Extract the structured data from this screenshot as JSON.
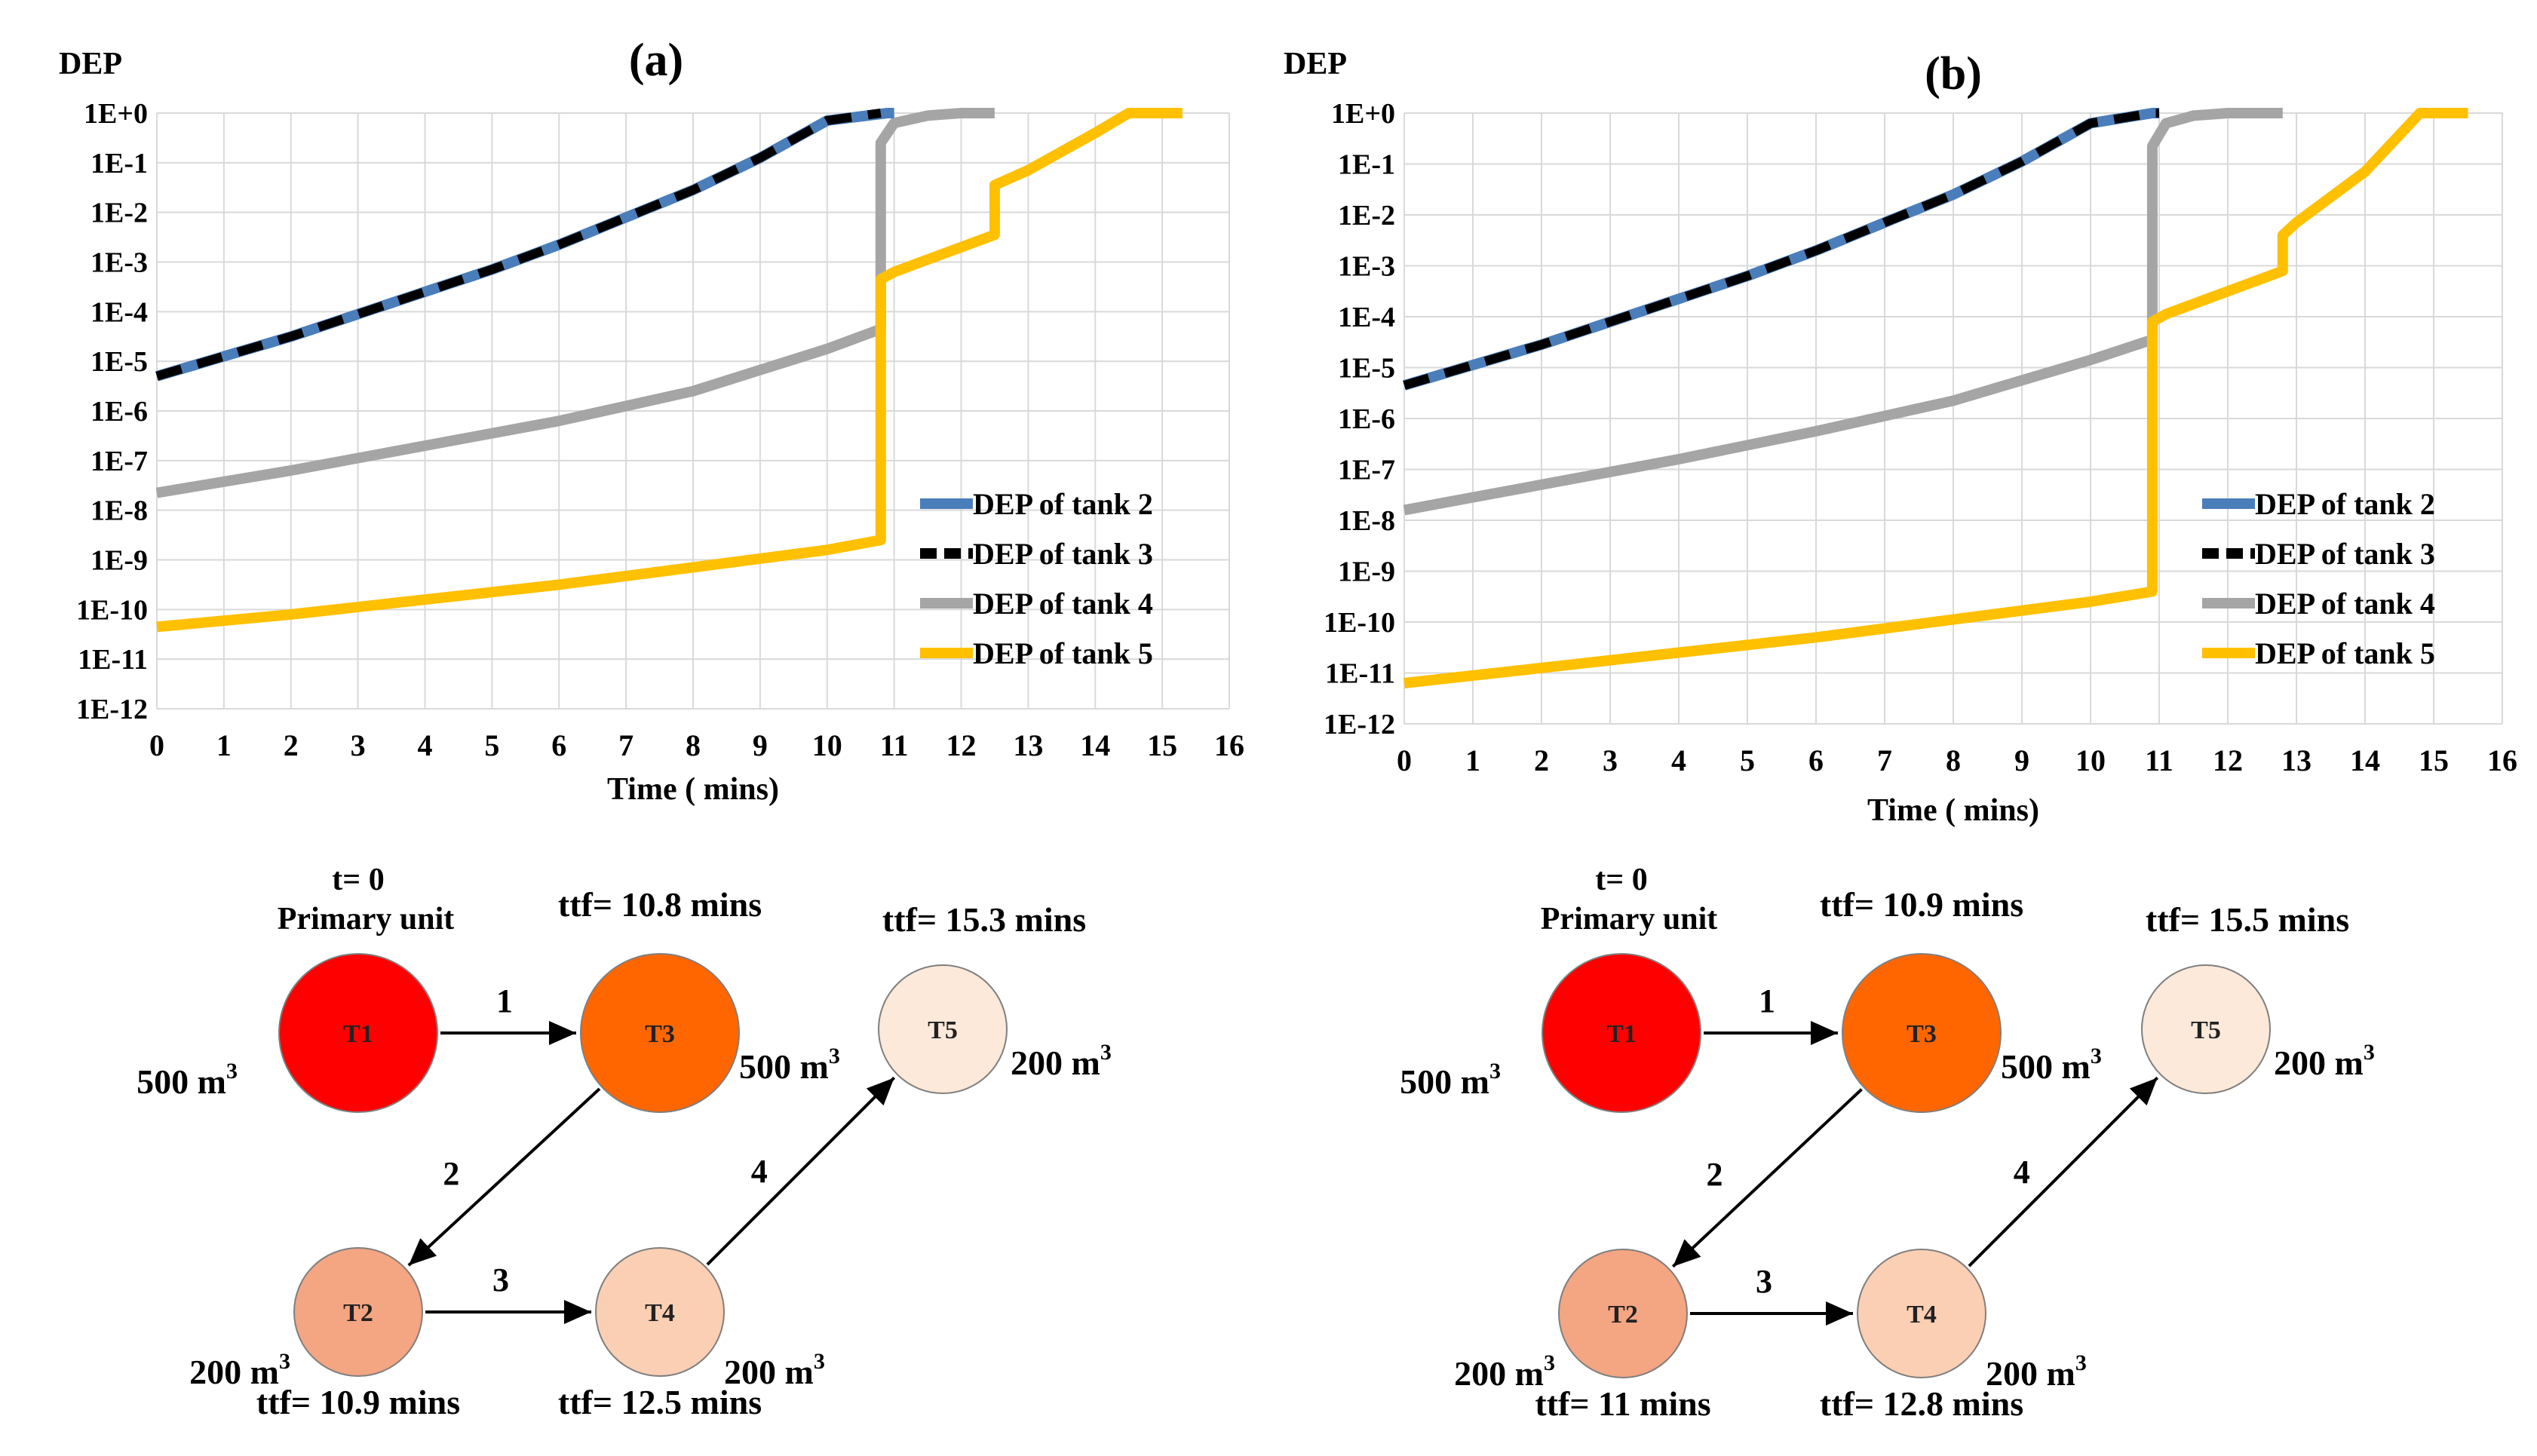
{
  "chart_data": [
    {
      "type": "line",
      "panel_label": "(a)",
      "ylabel": "DEP",
      "xlabel": "Time ( mins)",
      "y_scale": "log",
      "ylim": [
        1e-12,
        1
      ],
      "xlim": [
        0,
        16
      ],
      "x_ticks": [
        "0",
        "1",
        "2",
        "3",
        "4",
        "5",
        "6",
        "7",
        "8",
        "9",
        "10",
        "11",
        "12",
        "13",
        "14",
        "15",
        "16"
      ],
      "y_ticks": [
        "1E+0",
        "1E-1",
        "1E-2",
        "1E-3",
        "1E-4",
        "1E-5",
        "1E-6",
        "1E-7",
        "1E-8",
        "1E-9",
        "1E-10",
        "1E-11",
        "1E-12"
      ],
      "legend_position": "center-right",
      "series": [
        {
          "name": "DEP of tank 2",
          "color": "#4a7ebb",
          "x": [
            0,
            1,
            2,
            3,
            4,
            5,
            6,
            7,
            8,
            9,
            10,
            10.9,
            11
          ],
          "log10_y": [
            -5.3,
            -4.9,
            -4.5,
            -4.05,
            -3.6,
            -3.15,
            -2.65,
            -2.1,
            -1.55,
            -0.9,
            -0.15,
            0,
            0
          ]
        },
        {
          "name": "DEP of tank 3",
          "color": "#000000",
          "x": [
            0,
            1,
            2,
            3,
            4,
            5,
            6,
            7,
            8,
            9,
            10,
            10.8
          ],
          "log10_y": [
            -5.3,
            -4.9,
            -4.5,
            -4.05,
            -3.6,
            -3.15,
            -2.65,
            -2.1,
            -1.55,
            -0.9,
            -0.15,
            0
          ],
          "dashed": true
        },
        {
          "name": "DEP of tank 4",
          "color": "#a5a5a5",
          "x": [
            0,
            2,
            4,
            6,
            8,
            10,
            10.8,
            10.8,
            11,
            11.5,
            12,
            12.5
          ],
          "log10_y": [
            -7.65,
            -7.2,
            -6.7,
            -6.2,
            -5.6,
            -4.75,
            -4.35,
            -0.6,
            -0.2,
            -0.05,
            0,
            0
          ]
        },
        {
          "name": "DEP of tank 5",
          "color": "#ffc000",
          "x": [
            0,
            2,
            4,
            6,
            8,
            10,
            10.8,
            10.8,
            11,
            12,
            12.5,
            12.5,
            13,
            14,
            14.5,
            15.3
          ],
          "log10_y": [
            -10.35,
            -10.1,
            -9.8,
            -9.5,
            -9.15,
            -8.8,
            -8.6,
            -3.35,
            -3.2,
            -2.7,
            -2.45,
            -1.45,
            -1.15,
            -0.4,
            0,
            0
          ]
        }
      ],
      "diagram": {
        "t0_label": "t= 0",
        "primary_label": "Primary unit",
        "nodes": [
          {
            "id": "T1",
            "label": "T1",
            "volume": "500 m",
            "ttf": "",
            "color": "#ff0000"
          },
          {
            "id": "T3",
            "label": "T3",
            "volume": "500 m",
            "ttf": "ttf= 10.8 mins",
            "color": "#ff6600"
          },
          {
            "id": "T5",
            "label": "T5",
            "volume": "200 m",
            "ttf": "ttf= 15.3 mins",
            "color": "#fde9d9"
          },
          {
            "id": "T2",
            "label": "T2",
            "volume": "200 m",
            "ttf": "ttf= 10.9 mins",
            "color": "#f4a582"
          },
          {
            "id": "T4",
            "label": "T4",
            "volume": "200 m",
            "ttf": "ttf= 12.5 mins",
            "color": "#fbcfb4"
          }
        ],
        "edges": [
          {
            "label": "1",
            "from": "T1",
            "to": "T3"
          },
          {
            "label": "2",
            "from": "T3",
            "to": "T2"
          },
          {
            "label": "3",
            "from": "T2",
            "to": "T4"
          },
          {
            "label": "4",
            "from": "T4",
            "to": "T5"
          }
        ],
        "volume_sup": "3"
      }
    },
    {
      "type": "line",
      "panel_label": "(b)",
      "ylabel": "DEP",
      "xlabel": "Time ( mins)",
      "y_scale": "log",
      "ylim": [
        1e-12,
        1
      ],
      "xlim": [
        0,
        16
      ],
      "x_ticks": [
        "0",
        "1",
        "2",
        "3",
        "4",
        "5",
        "6",
        "7",
        "8",
        "9",
        "10",
        "11",
        "12",
        "13",
        "14",
        "15",
        "16"
      ],
      "y_ticks": [
        "1E+0",
        "1E-1",
        "1E-2",
        "1E-3",
        "1E-4",
        "1E-5",
        "1E-6",
        "1E-7",
        "1E-8",
        "1E-9",
        "1E-10",
        "1E-11",
        "1E-12"
      ],
      "legend_position": "center-right",
      "series": [
        {
          "name": "DEP of tank 2",
          "color": "#4a7ebb",
          "x": [
            0,
            1,
            2,
            3,
            4,
            5,
            6,
            7,
            8,
            9,
            10,
            10.9,
            11
          ],
          "log10_y": [
            -5.35,
            -4.95,
            -4.55,
            -4.1,
            -3.65,
            -3.2,
            -2.7,
            -2.15,
            -1.6,
            -0.95,
            -0.2,
            0,
            0
          ]
        },
        {
          "name": "DEP of tank 3",
          "color": "#000000",
          "x": [
            0,
            1,
            2,
            3,
            4,
            5,
            6,
            7,
            8,
            9,
            10,
            10.9,
            11
          ],
          "log10_y": [
            -5.35,
            -4.95,
            -4.55,
            -4.1,
            -3.65,
            -3.2,
            -2.7,
            -2.15,
            -1.6,
            -0.95,
            -0.2,
            0,
            0
          ],
          "dashed": true
        },
        {
          "name": "DEP of tank 4",
          "color": "#a5a5a5",
          "x": [
            0,
            2,
            4,
            6,
            8,
            10,
            10.9,
            10.9,
            11.1,
            11.5,
            12,
            12.8
          ],
          "log10_y": [
            -7.8,
            -7.3,
            -6.8,
            -6.25,
            -5.65,
            -4.85,
            -4.45,
            -0.65,
            -0.2,
            -0.05,
            0,
            0
          ]
        },
        {
          "name": "DEP of tank 5",
          "color": "#ffc000",
          "x": [
            0,
            2,
            4,
            6,
            8,
            10,
            10.9,
            10.9,
            11.1,
            12,
            12.8,
            12.8,
            13,
            14,
            14.8,
            15.5
          ],
          "log10_y": [
            -11.2,
            -10.9,
            -10.6,
            -10.3,
            -9.95,
            -9.6,
            -9.4,
            -4.1,
            -3.95,
            -3.5,
            -3.1,
            -2.4,
            -2.15,
            -1.15,
            0,
            0
          ]
        }
      ],
      "diagram": {
        "t0_label": "t= 0",
        "primary_label": "Primary unit",
        "nodes": [
          {
            "id": "T1",
            "label": "T1",
            "volume": "500 m",
            "ttf": "",
            "color": "#ff0000"
          },
          {
            "id": "T3",
            "label": "T3",
            "volume": "500 m",
            "ttf": "ttf= 10.9 mins",
            "color": "#ff6600"
          },
          {
            "id": "T5",
            "label": "T5",
            "volume": "200 m",
            "ttf": "ttf= 15.5 mins",
            "color": "#fde9d9"
          },
          {
            "id": "T2",
            "label": "T2",
            "volume": "200 m",
            "ttf": "ttf= 11 mins",
            "color": "#f4a582"
          },
          {
            "id": "T4",
            "label": "T4",
            "volume": "200 m",
            "ttf": "ttf= 12.8 mins",
            "color": "#fbcfb4"
          }
        ],
        "edges": [
          {
            "label": "1",
            "from": "T1",
            "to": "T3"
          },
          {
            "label": "2",
            "from": "T3",
            "to": "T2"
          },
          {
            "label": "3",
            "from": "T2",
            "to": "T4"
          },
          {
            "label": "4",
            "from": "T4",
            "to": "T5"
          }
        ],
        "volume_sup": "3"
      }
    }
  ]
}
